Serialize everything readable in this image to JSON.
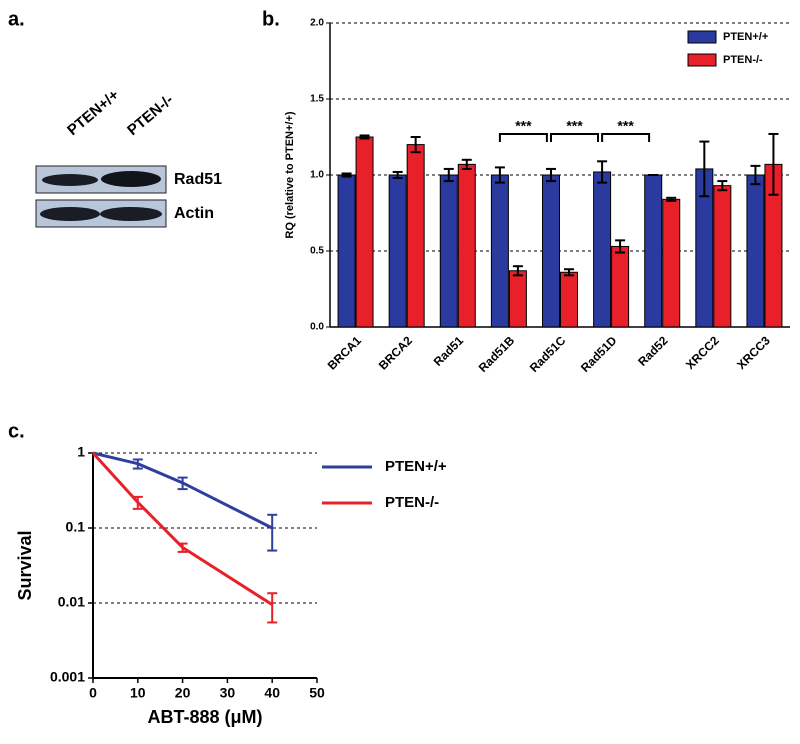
{
  "blot": {
    "label": "a.",
    "lanes": [
      "PTEN+/+",
      "PTEN-/-"
    ],
    "bands": [
      "Rad51",
      "Actin"
    ]
  },
  "chart_data": [
    {
      "type": "bar",
      "label": "b.",
      "y_label": "RQ (relative to PTEN+/+)",
      "categories": [
        "BRCA1",
        "BRCA2",
        "Rad51",
        "Rad51B",
        "Rad51C",
        "Rad51D",
        "Rad52",
        "XRCC2",
        "XRCC3"
      ],
      "series": [
        {
          "name": "PTEN+/+",
          "color": "#2b3a9e",
          "values": [
            1.0,
            1.0,
            1.0,
            1.0,
            1.0,
            1.02,
            1.0,
            1.04,
            1.0
          ],
          "errors": [
            0.01,
            0.02,
            0.04,
            0.05,
            0.04,
            0.07,
            0.0,
            0.18,
            0.06
          ]
        },
        {
          "name": "PTEN-/-",
          "color": "#e8202a",
          "values": [
            1.25,
            1.2,
            1.07,
            0.37,
            0.36,
            0.53,
            0.84,
            0.93,
            1.07
          ],
          "errors": [
            0.01,
            0.05,
            0.03,
            0.03,
            0.02,
            0.04,
            0.01,
            0.03,
            0.2
          ]
        }
      ],
      "significance": [
        null,
        null,
        null,
        "***",
        "***",
        "***",
        null,
        null,
        null
      ],
      "ylim": [
        0,
        2
      ],
      "yticks": [
        {
          "value": 0,
          "label": "0.0"
        },
        {
          "value": 0.5,
          "label": "0.5"
        },
        {
          "value": 1,
          "label": "1.0"
        },
        {
          "value": 1.5,
          "label": "1.5"
        },
        {
          "value": 2,
          "label": "2.0"
        }
      ],
      "grid": true,
      "legend": "top-right"
    },
    {
      "type": "line",
      "label": "c.",
      "x_label": "ABT-888 (μM)",
      "y_label": "Survival",
      "x": [
        0,
        10,
        20,
        40
      ],
      "series": [
        {
          "name": "PTEN+/+",
          "color": "#2f3f9e",
          "values": [
            1,
            0.72,
            0.4,
            0.1
          ],
          "errors": [
            0,
            0.1,
            0.07,
            0.05
          ]
        },
        {
          "name": "PTEN-/-",
          "color": "#e8202a",
          "values": [
            1,
            0.22,
            0.055,
            0.0095
          ],
          "errors": [
            0,
            0.04,
            0.007,
            0.004
          ]
        }
      ],
      "xlim": [
        0,
        50
      ],
      "xticks": [
        0,
        10,
        20,
        30,
        40,
        50
      ],
      "ylim": [
        0.001,
        1
      ],
      "yticks": [
        0.001,
        0.01,
        0.1,
        1
      ],
      "log_y": true,
      "grid": true,
      "legend": "right"
    }
  ]
}
